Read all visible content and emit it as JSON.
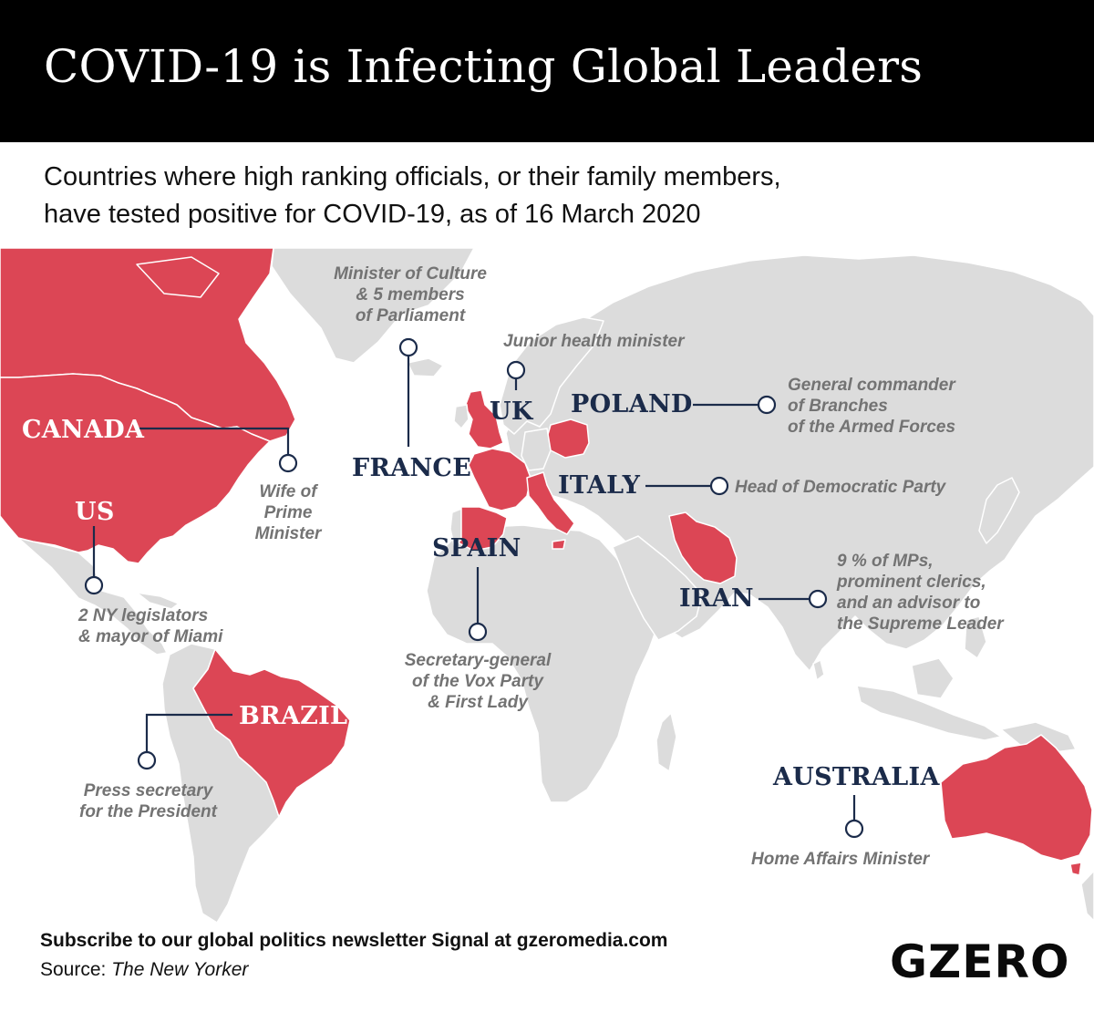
{
  "header": {
    "title": "COVID-19 is Infecting Global Leaders",
    "subtitle_line1": "Countries where high ranking officials, or their family members,",
    "subtitle_line2": "have tested positive for COVID-19, as of 16 March 2020"
  },
  "colors": {
    "affected": "#dc4655",
    "land": "#dcdcdc",
    "border": "#ffffff",
    "label_dark": "#1b2b4a",
    "note": "#737373"
  },
  "map": {
    "affected_countries": [
      "CANADA",
      "US",
      "BRAZIL",
      "FRANCE",
      "UK",
      "SPAIN",
      "ITALY",
      "POLAND",
      "IRAN",
      "AUSTRALIA"
    ],
    "labels": {
      "canada": "CANADA",
      "us": "US",
      "brazil": "BRAZIL",
      "france": "FRANCE",
      "uk": "UK",
      "spain": "SPAIN",
      "poland": "POLAND",
      "italy": "ITALY",
      "iran": "IRAN",
      "australia": "AUSTRALIA"
    },
    "notes": {
      "canada": [
        "Wife of",
        "Prime",
        "Minister"
      ],
      "us": [
        "2 NY legislators",
        "& mayor of Miami"
      ],
      "brazil": [
        "Press secretary",
        "for the President"
      ],
      "france": [
        "Minister of Culture",
        "& 5 members",
        "of Parliament"
      ],
      "uk": [
        "Junior health minister"
      ],
      "spain": [
        "Secretary-general",
        "of the Vox Party",
        "& First Lady"
      ],
      "poland": [
        "General commander",
        "of Branches",
        "of the Armed Forces"
      ],
      "italy": [
        "Head of Democratic Party"
      ],
      "iran": [
        "9 % of MPs,",
        "prominent clerics,",
        "and an advisor to",
        "the Supreme Leader"
      ],
      "australia": [
        "Home Affairs Minister"
      ]
    }
  },
  "footer": {
    "subscribe": "Subscribe to our global politics newsletter Signal at gzeromedia.com",
    "source_prefix": "Source: ",
    "source_name": "The New Yorker",
    "brand": "GZERO"
  }
}
